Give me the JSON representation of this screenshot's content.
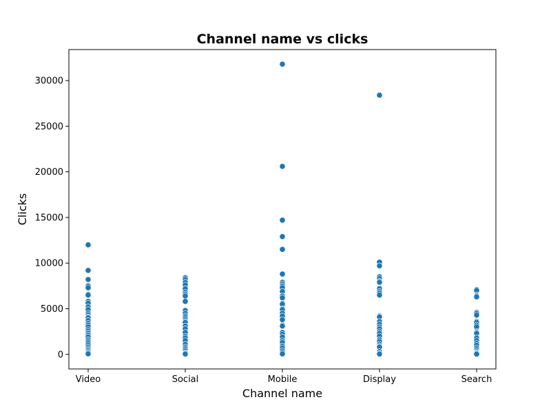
{
  "chart_data": {
    "type": "scatter",
    "title": "Channel name vs clicks",
    "xlabel": "Channel name",
    "ylabel": "Clicks",
    "categories": [
      "Video",
      "Social",
      "Mobile",
      "Display",
      "Search"
    ],
    "yticks": [
      0,
      5000,
      10000,
      15000,
      20000,
      25000,
      30000
    ],
    "ylim": [
      -1600,
      33400
    ],
    "grid": false,
    "point_color": "#1f77b4",
    "points": {
      "Video": [
        12000,
        9200,
        8200,
        7500,
        7300,
        6600,
        6500,
        5800,
        5600,
        5200,
        4900,
        4500,
        4300,
        4100,
        4000,
        3700,
        3400,
        3200,
        3000,
        2700,
        2500,
        2300,
        2100,
        1900,
        1600,
        1400,
        1200,
        1000,
        800,
        600,
        450,
        300,
        150,
        60
      ],
      "Social": [
        8400,
        8200,
        7900,
        7600,
        7200,
        6800,
        6600,
        6400,
        5800,
        4800,
        4500,
        4200,
        4000,
        3800,
        3600,
        3500,
        3100,
        2800,
        2400,
        2000,
        1800,
        1500,
        1100,
        800,
        600,
        400,
        200,
        100,
        40
      ],
      "Mobile": [
        31800,
        20600,
        14700,
        12900,
        11500,
        8800,
        7900,
        7700,
        7500,
        7300,
        6900,
        6400,
        6200,
        5600,
        5500,
        5000,
        4900,
        4500,
        4200,
        3800,
        3200,
        3100,
        2400,
        2200,
        1900,
        1500,
        1300,
        900,
        700,
        400,
        200,
        50
      ],
      "Display": [
        28400,
        10100,
        9700,
        8500,
        8300,
        8000,
        7900,
        7200,
        6900,
        6700,
        6500,
        4200,
        4100,
        3600,
        3300,
        3000,
        2800,
        2500,
        2300,
        2000,
        1600,
        1400,
        1100,
        900,
        800,
        300,
        100,
        40
      ],
      "Search": [
        7100,
        7000,
        6500,
        6400,
        6300,
        4600,
        4500,
        4300,
        3600,
        3500,
        3200,
        3000,
        2500,
        2400,
        2300,
        1800,
        1500,
        1200,
        1000,
        700,
        500,
        300,
        200,
        100,
        30
      ]
    }
  }
}
